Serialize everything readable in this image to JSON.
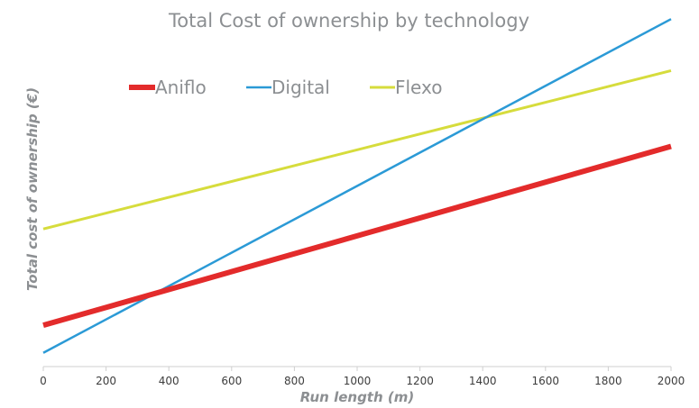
{
  "chart_data": {
    "type": "line",
    "title": "Total Cost of ownership by technology",
    "xlabel": "Run length (m)",
    "ylabel": "Total cost of ownership (€)",
    "xlim": [
      0,
      2000
    ],
    "ylim": [
      0,
      100
    ],
    "x_ticks": [
      "0",
      "200",
      "400",
      "600",
      "800",
      "1000",
      "1200",
      "1400",
      "1600",
      "1800",
      "2000"
    ],
    "y_ticks_shown": false,
    "grid": false,
    "legend": "top-left",
    "series": [
      {
        "name": "Aniflo",
        "color": "#e32b2b",
        "x": [
          0,
          2000
        ],
        "y": [
          12,
          64
        ]
      },
      {
        "name": "Digital",
        "color": "#2b9ad6",
        "x": [
          0,
          2000
        ],
        "y": [
          4,
          101
        ]
      },
      {
        "name": "Flexo",
        "color": "#d6dc3c",
        "x": [
          0,
          2000
        ],
        "y": [
          40,
          86
        ]
      }
    ]
  }
}
